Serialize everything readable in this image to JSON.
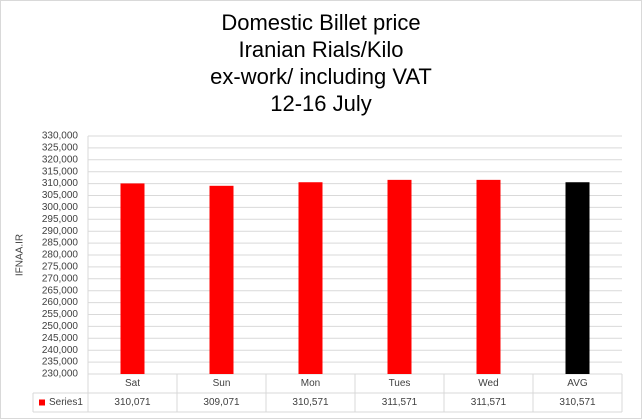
{
  "chart_data": {
    "type": "bar",
    "title": [
      "Domestic Billet price",
      "Iranian Rials/Kilo",
      "ex-work/ including VAT",
      "12-16 July"
    ],
    "ylabel": "IFNAA.IR",
    "categories": [
      "Sat",
      "Sun",
      "Mon",
      "Tues",
      "Wed",
      "AVG"
    ],
    "series": [
      {
        "name": "Series1",
        "color": "#ff0000",
        "colors": [
          "#ff0000",
          "#ff0000",
          "#ff0000",
          "#ff0000",
          "#ff0000",
          "#000000"
        ],
        "values": [
          310071,
          309071,
          310571,
          311571,
          311571,
          310571
        ],
        "value_labels": [
          "310,071",
          "309,071",
          "310,571",
          "311,571",
          "311,571",
          "310,571"
        ]
      }
    ],
    "ylim": [
      230000,
      330000
    ],
    "yticks": [
      {
        "value": 230000,
        "label": "230,000"
      },
      {
        "value": 235000,
        "label": "235,000"
      },
      {
        "value": 240000,
        "label": "240,000"
      },
      {
        "value": 245000,
        "label": "245,000"
      },
      {
        "value": 250000,
        "label": "250,000"
      },
      {
        "value": 255000,
        "label": "255,000"
      },
      {
        "value": 260000,
        "label": "260,000"
      },
      {
        "value": 265000,
        "label": "265,000"
      },
      {
        "value": 270000,
        "label": "270,000"
      },
      {
        "value": 275000,
        "label": "275,000"
      },
      {
        "value": 280000,
        "label": "280,000"
      },
      {
        "value": 285000,
        "label": "285,000"
      },
      {
        "value": 290000,
        "label": "290,000"
      },
      {
        "value": 295000,
        "label": "295,000"
      },
      {
        "value": 300000,
        "label": "300,000"
      },
      {
        "value": 305000,
        "label": "305,000"
      },
      {
        "value": 310000,
        "label": "310,000"
      },
      {
        "value": 315000,
        "label": "315,000"
      },
      {
        "value": 320000,
        "label": "320,000"
      },
      {
        "value": 325000,
        "label": "325,000"
      },
      {
        "value": 330000,
        "label": "330,000"
      }
    ],
    "grid": true
  }
}
